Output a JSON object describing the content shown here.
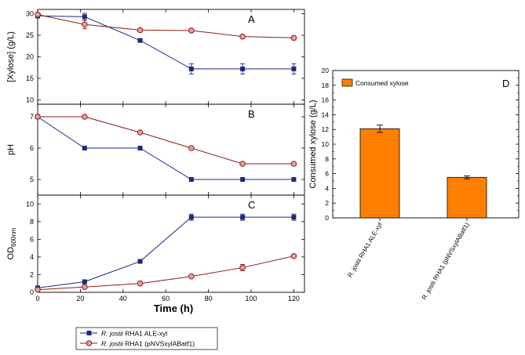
{
  "chart_data": [
    {
      "type": "line",
      "panel": "A",
      "ylabel": "[Xylose] (g/L)",
      "ylim": [
        9,
        31
      ],
      "yticks": [
        10,
        15,
        20,
        25,
        30
      ],
      "xlim": [
        0,
        125
      ],
      "series": [
        {
          "name": "R. jostii RHA1 ALE-xyl",
          "x": [
            0,
            22,
            48,
            72,
            96,
            120
          ],
          "y": [
            29.5,
            29.3,
            23.8,
            17.2,
            17.2,
            17.2
          ],
          "err": [
            0.5,
            0.8,
            0.3,
            1.2,
            1.2,
            1.2
          ]
        },
        {
          "name": "R. jostii RHA1 (pNVSxylABatf1)",
          "x": [
            0,
            22,
            48,
            72,
            96,
            120
          ],
          "y": [
            29.8,
            27.5,
            26.2,
            26.1,
            24.7,
            24.4
          ],
          "err": [
            0.3,
            1.0,
            0.3,
            0.4,
            0.3,
            0.3
          ]
        }
      ]
    },
    {
      "type": "line",
      "panel": "B",
      "ylabel": "pH",
      "ylim": [
        4.5,
        7.4
      ],
      "yticks": [
        5,
        6,
        7
      ],
      "xlim": [
        0,
        125
      ],
      "series": [
        {
          "name": "R. jostii RHA1 ALE-xyl",
          "x": [
            0,
            22,
            48,
            72,
            96,
            120
          ],
          "y": [
            7,
            6,
            6,
            5,
            5,
            5
          ]
        },
        {
          "name": "R. jostii RHA1 (pNVSxylABatf1)",
          "x": [
            0,
            22,
            48,
            72,
            96,
            120
          ],
          "y": [
            7,
            7,
            6.5,
            6,
            5.5,
            5.5
          ]
        }
      ]
    },
    {
      "type": "line",
      "panel": "C",
      "ylabel": "OD",
      "ylabel_sub": "600nm",
      "xlabel": "Time (h)",
      "ylim": [
        0,
        11
      ],
      "yticks": [
        0,
        2,
        4,
        6,
        8,
        10
      ],
      "xlim": [
        0,
        125
      ],
      "xticks": [
        0,
        20,
        40,
        60,
        80,
        100,
        120
      ],
      "series": [
        {
          "name": "R. jostii RHA1 ALE-xyl",
          "x": [
            0,
            22,
            48,
            72,
            96,
            120
          ],
          "y": [
            0.5,
            1.2,
            3.5,
            8.5,
            8.5,
            8.5
          ],
          "err": [
            0,
            0.1,
            0.1,
            0.35,
            0.35,
            0.35
          ]
        },
        {
          "name": "R. jostii RHA1 (pNVSxylABatf1)",
          "x": [
            0,
            22,
            48,
            72,
            96,
            120
          ],
          "y": [
            0.3,
            0.6,
            1.0,
            1.8,
            2.8,
            4.1
          ],
          "err": [
            0,
            0.05,
            0.1,
            0.1,
            0.35,
            0.1
          ]
        }
      ]
    },
    {
      "type": "bar",
      "panel": "D",
      "ylabel": "Consumed xylose (g/L)",
      "ylim": [
        0,
        20
      ],
      "yticks": [
        0,
        2,
        4,
        6,
        8,
        10,
        12,
        14,
        16,
        18,
        20
      ],
      "legend": "Consumed xylose",
      "categories": [
        "R. jostii RHA1 ALE-xyl",
        "R. jostii RHA1 (pNVSxylABatf1)"
      ],
      "values": [
        12.1,
        5.5
      ],
      "err": [
        0.5,
        0.2
      ]
    }
  ],
  "shared_legend": [
    {
      "name_italic": "R. jostii",
      "name_rest": " RHA1 ALE-xyl"
    },
    {
      "name_italic": "R. jostii",
      "name_rest": " RHA1 (pNVSxylABatf1)"
    }
  ],
  "colors": {
    "ale": "#1a2a80",
    "pnvs": "#8b1a1a",
    "pnvs_fill": "#e8a09a",
    "bar": "#ff8000"
  }
}
